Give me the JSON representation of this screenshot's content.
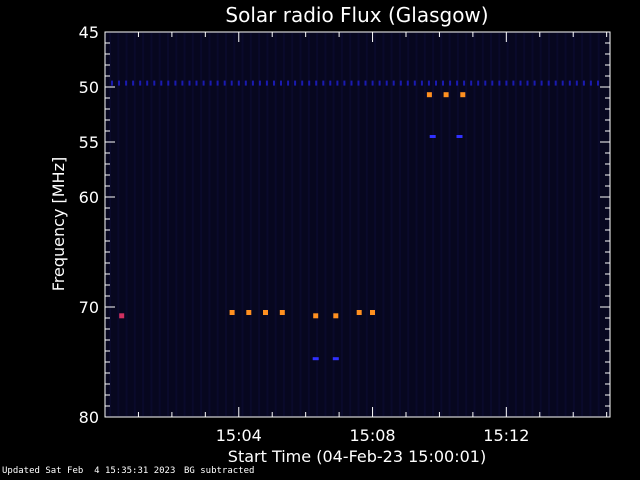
{
  "chart_data": {
    "type": "heatmap",
    "title": "Solar radio Flux (Glasgow)",
    "xlabel": "Start Time (04-Feb-23 15:00:01)",
    "ylabel": "Frequency [MHz]",
    "xlim_minutes_after_15": [
      0.0,
      15.1
    ],
    "ylim": [
      45,
      80
    ],
    "x_ticks": [
      {
        "label": "15:04",
        "minute": 4
      },
      {
        "label": "15:08",
        "minute": 8
      },
      {
        "label": "15:12",
        "minute": 12
      }
    ],
    "y_ticks": [
      45,
      50,
      55,
      60,
      70,
      80
    ],
    "background_color": "#07071f",
    "blips": [
      {
        "t": 0.5,
        "f": 70.8,
        "intensity": "mid"
      },
      {
        "t": 3.8,
        "f": 70.5,
        "intensity": "high"
      },
      {
        "t": 4.3,
        "f": 70.5,
        "intensity": "high"
      },
      {
        "t": 4.8,
        "f": 70.5,
        "intensity": "high"
      },
      {
        "t": 5.3,
        "f": 70.5,
        "intensity": "high"
      },
      {
        "t": 6.3,
        "f": 70.8,
        "intensity": "high"
      },
      {
        "t": 6.9,
        "f": 70.8,
        "intensity": "high"
      },
      {
        "t": 7.6,
        "f": 70.5,
        "intensity": "high"
      },
      {
        "t": 8.0,
        "f": 70.5,
        "intensity": "high"
      },
      {
        "t": 9.7,
        "f": 50.7,
        "intensity": "high"
      },
      {
        "t": 10.2,
        "f": 50.7,
        "intensity": "high"
      },
      {
        "t": 10.7,
        "f": 50.7,
        "intensity": "high"
      },
      {
        "t": 6.3,
        "f": 74.7,
        "intensity": "low"
      },
      {
        "t": 6.9,
        "f": 74.7,
        "intensity": "low"
      },
      {
        "t": 9.8,
        "f": 54.5,
        "intensity": "low"
      },
      {
        "t": 10.6,
        "f": 54.5,
        "intensity": "low"
      }
    ],
    "color_scale": {
      "low": "#3030ff",
      "mid": "#d03060",
      "high": "#ff9020"
    }
  },
  "footer": {
    "updated": "Updated Sat Feb  4 15:35:31 2023",
    "note": "BG subtracted"
  }
}
